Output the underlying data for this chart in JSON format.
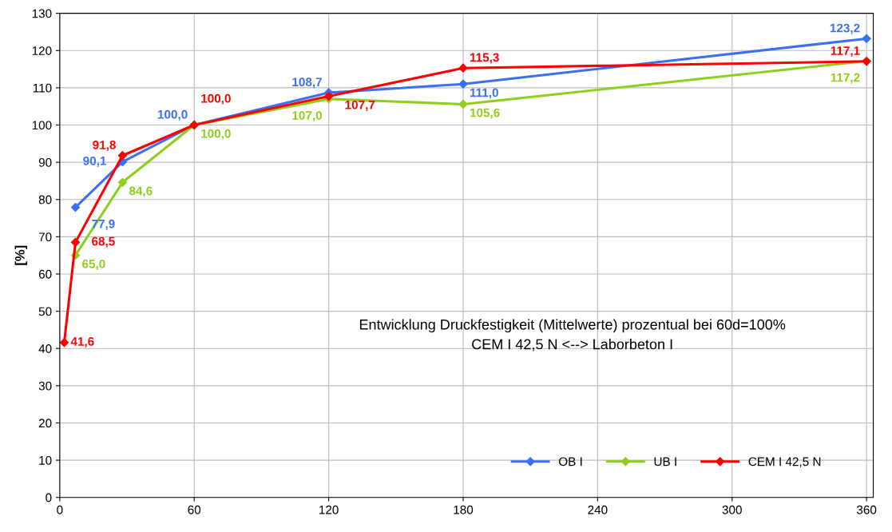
{
  "chart_data": {
    "type": "line",
    "title": "Entwicklung Druckfestigkeit (Mittelwerte) prozentual bei 60d=100%\nCEM I 42,5 N <--> Laborbeton I",
    "ylabel": "[%]",
    "xlim": [
      0,
      363
    ],
    "xticks": [
      0,
      60,
      120,
      180,
      240,
      300,
      360
    ],
    "ylim": [
      0,
      130
    ],
    "yticks": [
      0,
      10,
      20,
      30,
      40,
      50,
      60,
      70,
      80,
      90,
      100,
      110,
      120,
      130
    ],
    "grid": true,
    "legend": "bottom right",
    "marker": "diamond",
    "line_style": "solid",
    "series": [
      {
        "name": "OB I",
        "color": "#3b6ff5",
        "x": [
          7,
          28,
          60,
          120,
          180,
          360
        ],
        "values": [
          77.9,
          90.1,
          100.0,
          108.7,
          111.0,
          123.2
        ],
        "value_labels": [
          "77,9",
          "90,1",
          "100,0",
          "108,7",
          "111,0",
          "123,2"
        ]
      },
      {
        "name": "UB I",
        "color": "#8fce1c",
        "x": [
          7,
          28,
          60,
          120,
          180,
          360
        ],
        "values": [
          65.0,
          84.6,
          100.0,
          107.0,
          105.6,
          117.2
        ],
        "value_labels": [
          "65,0",
          "84,6",
          "100,0",
          "107,0",
          "105,6",
          "117,2"
        ]
      },
      {
        "name": "CEM I 42,5 N",
        "color": "#ff0000",
        "x": [
          2,
          7,
          28,
          60,
          120,
          180,
          360
        ],
        "values": [
          41.6,
          68.5,
          91.8,
          100.0,
          107.7,
          115.3,
          117.1
        ],
        "value_labels": [
          "41,6",
          "68,5",
          "91,8",
          "100,0",
          "107,7",
          "115,3",
          "117,1"
        ]
      }
    ]
  }
}
